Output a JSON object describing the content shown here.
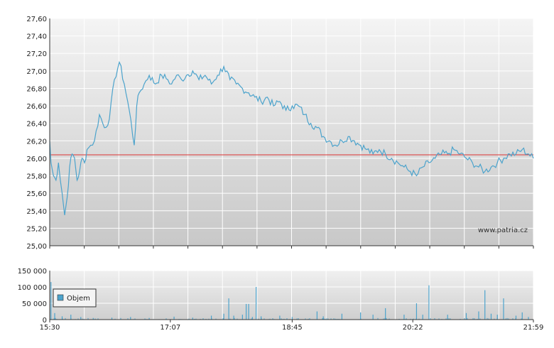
{
  "watermark": "www.patria.cz",
  "colors": {
    "price_line": "#4ca3cc",
    "volume_bar": "#4ca3cc",
    "reference_line": "#dd3333",
    "grid": "#ffffff",
    "axis": "#333333"
  },
  "chart_data": [
    {
      "type": "line",
      "title": "",
      "xlabel": "",
      "ylabel": "",
      "ylim": [
        25.0,
        27.6
      ],
      "y_ticks": [
        "27,60",
        "27,40",
        "27,20",
        "27,00",
        "26,80",
        "26,60",
        "26,40",
        "26,20",
        "26,00",
        "25,80",
        "25,60",
        "25,40",
        "25,20",
        "25,00"
      ],
      "grid": true,
      "reference_value": 26.04,
      "series": [
        {
          "x": [
            "15:30",
            "15:31",
            "15:33",
            "15:35",
            "15:37",
            "15:40",
            "15:42",
            "15:44",
            "15:46",
            "15:48",
            "15:50",
            "15:52",
            "15:54",
            "15:56",
            "15:58",
            "16:00",
            "16:03",
            "16:06",
            "16:10",
            "16:14",
            "16:18",
            "16:22",
            "16:26",
            "16:30",
            "16:34",
            "16:38",
            "16:40",
            "16:42",
            "16:46",
            "16:50",
            "16:55",
            "17:00",
            "17:05",
            "17:08",
            "17:12",
            "17:16",
            "17:20",
            "17:25",
            "17:30",
            "17:35",
            "17:40",
            "17:45",
            "17:50",
            "17:55",
            "18:00",
            "18:05",
            "18:10",
            "18:15",
            "18:20",
            "18:25",
            "18:30",
            "18:35",
            "18:40",
            "18:45",
            "18:50",
            "18:55",
            "19:00",
            "19:05",
            "19:10",
            "19:15",
            "19:20",
            "19:25",
            "19:30",
            "19:35",
            "19:40",
            "19:45",
            "19:50",
            "19:55",
            "20:00",
            "20:05",
            "20:10",
            "20:15",
            "20:20",
            "20:25",
            "20:30",
            "20:35",
            "20:40",
            "20:45",
            "20:50",
            "20:55",
            "21:00",
            "21:05",
            "21:10",
            "21:15",
            "21:20",
            "21:25",
            "21:30",
            "21:35",
            "21:40",
            "21:45",
            "21:50",
            "21:55",
            "21:59"
          ],
          "y": [
            26.2,
            25.95,
            25.8,
            25.75,
            25.95,
            25.6,
            25.35,
            25.55,
            25.9,
            26.05,
            26.0,
            25.75,
            25.85,
            26.0,
            25.95,
            26.1,
            26.15,
            26.2,
            26.5,
            26.35,
            26.45,
            26.9,
            27.1,
            26.85,
            26.55,
            26.15,
            26.6,
            26.75,
            26.85,
            26.95,
            26.85,
            26.95,
            26.9,
            26.85,
            26.95,
            26.9,
            26.95,
            27.0,
            26.9,
            26.95,
            26.85,
            26.95,
            27.05,
            26.9,
            26.85,
            26.8,
            26.75,
            26.7,
            26.65,
            26.7,
            26.6,
            26.65,
            26.55,
            26.6,
            26.6,
            26.5,
            26.4,
            26.35,
            26.25,
            26.2,
            26.15,
            26.2,
            26.25,
            26.2,
            26.15,
            26.1,
            26.05,
            26.1,
            26.05,
            26.0,
            25.95,
            25.9,
            25.85,
            25.8,
            25.9,
            25.95,
            26.0,
            26.05,
            26.05,
            26.1,
            26.05,
            26.0,
            25.95,
            25.9,
            25.85,
            25.9,
            25.95,
            26.0,
            26.05,
            26.05,
            26.1,
            26.05,
            26.0
          ]
        }
      ],
      "x_ticks": [
        "15:30",
        "17:07",
        "18:45",
        "20:22",
        "21:59"
      ]
    },
    {
      "type": "bar",
      "title": "",
      "xlabel": "",
      "ylabel": "",
      "ylim": [
        0,
        150000
      ],
      "y_ticks": [
        "150 000",
        "100 000",
        "50 000",
        "0"
      ],
      "grid": true,
      "legend": {
        "position": "top-left",
        "entries": [
          "Objem"
        ]
      },
      "x_ticks": [
        "15:30",
        "17:07",
        "18:45",
        "20:22",
        "21:59"
      ],
      "series": [
        {
          "name": "Objem",
          "spikes": [
            {
              "t": "15:31",
              "v": 115000
            },
            {
              "t": "15:34",
              "v": 20000
            },
            {
              "t": "15:40",
              "v": 10000
            },
            {
              "t": "15:47",
              "v": 15000
            },
            {
              "t": "15:55",
              "v": 8000
            },
            {
              "t": "16:05",
              "v": 5000
            },
            {
              "t": "16:20",
              "v": 6000
            },
            {
              "t": "16:35",
              "v": 8000
            },
            {
              "t": "16:50",
              "v": 5000
            },
            {
              "t": "17:10",
              "v": 9000
            },
            {
              "t": "17:25",
              "v": 6000
            },
            {
              "t": "17:40",
              "v": 12000
            },
            {
              "t": "17:50",
              "v": 18000
            },
            {
              "t": "17:54",
              "v": 65000
            },
            {
              "t": "17:58",
              "v": 12000
            },
            {
              "t": "18:05",
              "v": 15000
            },
            {
              "t": "18:08",
              "v": 48000
            },
            {
              "t": "18:10",
              "v": 48000
            },
            {
              "t": "18:13",
              "v": 8000
            },
            {
              "t": "18:16",
              "v": 100000
            },
            {
              "t": "18:20",
              "v": 10000
            },
            {
              "t": "18:35",
              "v": 12000
            },
            {
              "t": "18:45",
              "v": 8000
            },
            {
              "t": "19:05",
              "v": 25000
            },
            {
              "t": "19:10",
              "v": 10000
            },
            {
              "t": "19:25",
              "v": 18000
            },
            {
              "t": "19:40",
              "v": 22000
            },
            {
              "t": "19:50",
              "v": 15000
            },
            {
              "t": "20:00",
              "v": 35000
            },
            {
              "t": "20:15",
              "v": 15000
            },
            {
              "t": "20:25",
              "v": 50000
            },
            {
              "t": "20:30",
              "v": 15000
            },
            {
              "t": "20:35",
              "v": 105000
            },
            {
              "t": "20:50",
              "v": 15000
            },
            {
              "t": "21:05",
              "v": 20000
            },
            {
              "t": "21:15",
              "v": 25000
            },
            {
              "t": "21:20",
              "v": 90000
            },
            {
              "t": "21:25",
              "v": 18000
            },
            {
              "t": "21:30",
              "v": 15000
            },
            {
              "t": "21:35",
              "v": 65000
            },
            {
              "t": "21:45",
              "v": 12000
            },
            {
              "t": "21:50",
              "v": 22000
            },
            {
              "t": "21:55",
              "v": 8000
            }
          ]
        }
      ]
    }
  ]
}
